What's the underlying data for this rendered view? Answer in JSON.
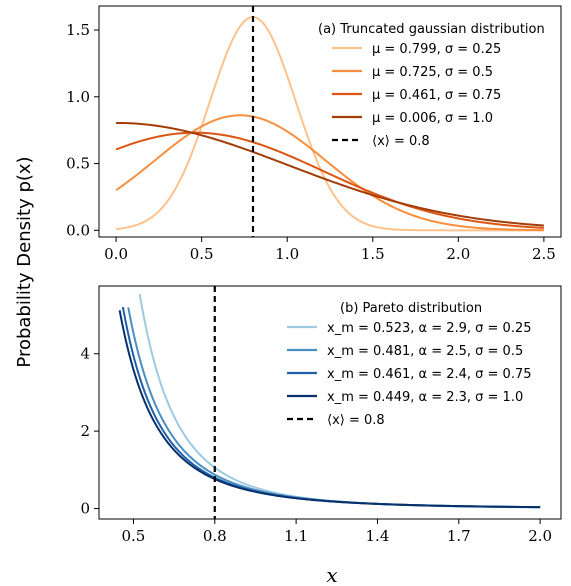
{
  "ylabel": "Probability Density p(x)",
  "xlabel": "x",
  "chart_data": [
    {
      "type": "line",
      "title": "(a) Truncated gaussian distribution",
      "xlim": [
        -0.1,
        2.6
      ],
      "ylim": [
        -0.05,
        1.68
      ],
      "xticks": [
        "0.0",
        "0.5",
        "1.0",
        "1.5",
        "2.0",
        "2.5"
      ],
      "yticks": [
        "0.0",
        "0.5",
        "1.0",
        "1.5"
      ],
      "xtick_values": [
        0,
        0.5,
        1.0,
        1.5,
        2.0,
        2.5
      ],
      "ytick_values": [
        0,
        0.5,
        1.0,
        1.5
      ],
      "domain": [
        0,
        2.5
      ],
      "series": [
        {
          "name": "μ = 0.799, σ = 0.25",
          "kind": "truncnorm",
          "mu": 0.799,
          "sigma": 0.25,
          "color": "#fdc28c"
        },
        {
          "name": "μ = 0.725, σ = 0.5",
          "kind": "truncnorm",
          "mu": 0.725,
          "sigma": 0.5,
          "color": "#f88e3e"
        },
        {
          "name": "μ = 0.461, σ = 0.75",
          "kind": "truncnorm",
          "mu": 0.461,
          "sigma": 0.75,
          "color": "#dc5511"
        },
        {
          "name": "μ = 0.006, σ = 1.0",
          "kind": "truncnorm",
          "mu": 0.006,
          "sigma": 1.0,
          "color": "#a43c06"
        }
      ],
      "vline": {
        "x": 0.8,
        "name": "⟨x⟩ = 0.8",
        "color": "#000000"
      }
    },
    {
      "type": "line",
      "title": "(b) Pareto distribution",
      "xlim": [
        0.373,
        2.077
      ],
      "ylim": [
        -0.27,
        5.75
      ],
      "xticks": [
        "0.5",
        "0.8",
        "1.1",
        "1.4",
        "1.7",
        "2.0"
      ],
      "yticks": [
        "0",
        "2",
        "4"
      ],
      "xtick_values": [
        0.5,
        0.8,
        1.1,
        1.4,
        1.7,
        2.0
      ],
      "ytick_values": [
        0,
        2,
        4
      ],
      "domain_end": 2.0,
      "series": [
        {
          "name": "x_m = 0.523, α = 2.9, σ = 0.25",
          "kind": "pareto",
          "xm": 0.523,
          "alpha": 2.9,
          "color": "#9ecae1"
        },
        {
          "name": "x_m = 0.481, α = 2.5, σ = 0.5",
          "kind": "pareto",
          "xm": 0.481,
          "alpha": 2.5,
          "color": "#4a8fc4"
        },
        {
          "name": "x_m = 0.461, α = 2.4, σ = 0.75",
          "kind": "pareto",
          "xm": 0.461,
          "alpha": 2.4,
          "color": "#1f60a8"
        },
        {
          "name": "x_m = 0.449, α = 2.3, σ = 1.0",
          "kind": "pareto",
          "xm": 0.449,
          "alpha": 2.3,
          "color": "#08306b"
        }
      ],
      "vline": {
        "x": 0.8,
        "name": "⟨x⟩ = 0.8",
        "color": "#000000"
      }
    }
  ]
}
